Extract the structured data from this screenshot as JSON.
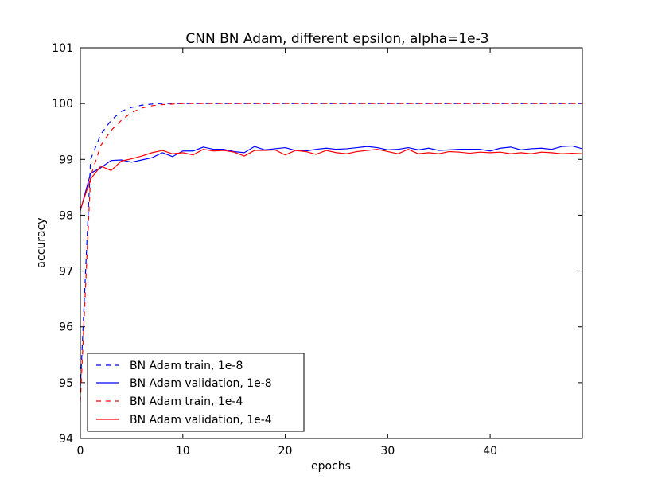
{
  "chart_data": {
    "type": "line",
    "title": "CNN BN Adam, different epsilon, alpha=1e-3",
    "xlabel": "epochs",
    "ylabel": "accuracy",
    "xlim": [
      0,
      49
    ],
    "ylim": [
      94,
      101
    ],
    "x_ticks": [
      0,
      10,
      20,
      30,
      40
    ],
    "y_ticks": [
      94,
      95,
      96,
      97,
      98,
      99,
      100,
      101
    ],
    "x_tick_labels": [
      "0",
      "10",
      "20",
      "30",
      "40"
    ],
    "y_tick_labels": [
      "94",
      "95",
      "96",
      "97",
      "98",
      "99",
      "100",
      "101"
    ],
    "legend_position": "lower-left",
    "grid": false,
    "series": [
      {
        "name": "BN Adam train, 1e-8",
        "color": "#0000ff",
        "linestyle": "dashed",
        "x": [
          0,
          1,
          2,
          3,
          4,
          5,
          6,
          7,
          8,
          9,
          10,
          11,
          12,
          13,
          14,
          15,
          16,
          17,
          18,
          19,
          20,
          21,
          22,
          23,
          24,
          25,
          26,
          27,
          28,
          29,
          30,
          31,
          32,
          33,
          34,
          35,
          36,
          37,
          38,
          39,
          40,
          41,
          42,
          43,
          44,
          45,
          46,
          47,
          48,
          49
        ],
        "values": [
          94.9,
          99.0,
          99.45,
          99.7,
          99.86,
          99.93,
          99.97,
          99.99,
          100,
          100,
          100,
          100,
          100,
          100,
          100,
          100,
          100,
          100,
          100,
          100,
          100,
          100,
          100,
          100,
          100,
          100,
          100,
          100,
          100,
          100,
          100,
          100,
          100,
          100,
          100,
          100,
          100,
          100,
          100,
          100,
          100,
          100,
          100,
          100,
          100,
          100,
          100,
          100,
          100,
          100
        ]
      },
      {
        "name": "BN Adam validation, 1e-8",
        "color": "#0000ff",
        "linestyle": "solid",
        "x": [
          0,
          1,
          2,
          3,
          4,
          5,
          6,
          7,
          8,
          9,
          10,
          11,
          12,
          13,
          14,
          15,
          16,
          17,
          18,
          19,
          20,
          21,
          22,
          23,
          24,
          25,
          26,
          27,
          28,
          29,
          30,
          31,
          32,
          33,
          34,
          35,
          36,
          37,
          38,
          39,
          40,
          41,
          42,
          43,
          44,
          45,
          46,
          47,
          48,
          49
        ],
        "values": [
          98.08,
          98.75,
          98.85,
          98.98,
          98.99,
          98.95,
          98.99,
          99.03,
          99.12,
          99.05,
          99.15,
          99.15,
          99.22,
          99.18,
          99.18,
          99.14,
          99.12,
          99.23,
          99.17,
          99.19,
          99.21,
          99.16,
          99.15,
          99.18,
          99.2,
          99.18,
          99.19,
          99.21,
          99.23,
          99.21,
          99.17,
          99.18,
          99.21,
          99.17,
          99.2,
          99.16,
          99.17,
          99.18,
          99.18,
          99.18,
          99.15,
          99.2,
          99.22,
          99.17,
          99.19,
          99.2,
          99.18,
          99.23,
          99.24,
          99.19
        ]
      },
      {
        "name": "BN Adam train, 1e-4",
        "color": "#ff0000",
        "linestyle": "dashed",
        "x": [
          0,
          1,
          2,
          3,
          4,
          5,
          6,
          7,
          8,
          9,
          10,
          11,
          12,
          13,
          14,
          15,
          16,
          17,
          18,
          19,
          20,
          21,
          22,
          23,
          24,
          25,
          26,
          27,
          28,
          29,
          30,
          31,
          32,
          33,
          34,
          35,
          36,
          37,
          38,
          39,
          40,
          41,
          42,
          43,
          44,
          45,
          46,
          47,
          48,
          49
        ],
        "values": [
          94.65,
          98.7,
          99.25,
          99.52,
          99.7,
          99.84,
          99.92,
          99.96,
          99.98,
          99.99,
          100,
          100,
          100,
          100,
          100,
          100,
          100,
          100,
          100,
          100,
          100,
          100,
          100,
          100,
          100,
          100,
          100,
          100,
          100,
          100,
          100,
          100,
          100,
          100,
          100,
          100,
          100,
          100,
          100,
          100,
          100,
          100,
          100,
          100,
          100,
          100,
          100,
          100,
          100,
          100
        ]
      },
      {
        "name": "BN Adam validation, 1e-4",
        "color": "#ff0000",
        "linestyle": "solid",
        "x": [
          0,
          1,
          2,
          3,
          4,
          5,
          6,
          7,
          8,
          9,
          10,
          11,
          12,
          13,
          14,
          15,
          16,
          17,
          18,
          19,
          20,
          21,
          22,
          23,
          24,
          25,
          26,
          27,
          28,
          29,
          30,
          31,
          32,
          33,
          34,
          35,
          36,
          37,
          38,
          39,
          40,
          41,
          42,
          43,
          44,
          45,
          46,
          47,
          48,
          49
        ],
        "values": [
          98.1,
          98.65,
          98.88,
          98.8,
          98.97,
          99.01,
          99.06,
          99.12,
          99.16,
          99.1,
          99.12,
          99.08,
          99.18,
          99.15,
          99.16,
          99.13,
          99.06,
          99.16,
          99.16,
          99.17,
          99.08,
          99.16,
          99.14,
          99.09,
          99.16,
          99.12,
          99.1,
          99.14,
          99.16,
          99.18,
          99.14,
          99.1,
          99.18,
          99.1,
          99.12,
          99.1,
          99.14,
          99.13,
          99.11,
          99.13,
          99.12,
          99.13,
          99.1,
          99.12,
          99.1,
          99.13,
          99.12,
          99.1,
          99.11,
          99.1
        ]
      }
    ]
  }
}
